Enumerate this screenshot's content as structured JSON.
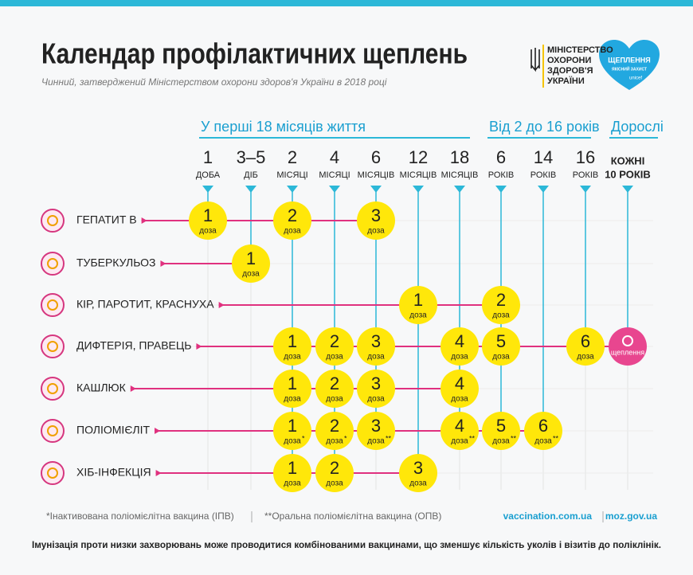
{
  "header": {
    "title": "Календар профілактичних щеплень",
    "subtitle": "Чинний, затверджений Міністерством охорони здоров'я України в 2018 році",
    "ministry": [
      "МІНІСТЕРСТВО",
      "ОХОРОНИ",
      "ЗДОРОВ'Я",
      "УКРАЇНИ"
    ],
    "badge": {
      "title": "ЩЕПЛЕННЯ",
      "subtitle": "ЯКІСНИЙ ЗАХИСТ",
      "brand": "unicef"
    }
  },
  "groups": [
    "У перші 18 місяців життя",
    "Від 2 до 16 років",
    "Дорослі"
  ],
  "columns": [
    {
      "number": "1",
      "unit": "ДОБА"
    },
    {
      "number": "3–5",
      "unit": "ДІБ"
    },
    {
      "number": "2",
      "unit": "МІСЯЦІ"
    },
    {
      "number": "4",
      "unit": "МІСЯЦІ"
    },
    {
      "number": "6",
      "unit": "МІСЯЦІВ"
    },
    {
      "number": "12",
      "unit": "МІСЯЦІВ"
    },
    {
      "number": "18",
      "unit": "МІСЯЦІВ"
    },
    {
      "number": "6",
      "unit": "РОКІВ"
    },
    {
      "number": "14",
      "unit": "РОКІВ"
    },
    {
      "number": "16",
      "unit": "РОКІВ"
    },
    {
      "number": "КОЖНІ",
      "unit": "10 РОКІВ"
    }
  ],
  "rows": [
    {
      "label": "ГЕПАТИТ В",
      "doses": [
        {
          "number": 1,
          "label": "доза"
        },
        null,
        {
          "number": 2,
          "label": "доза"
        },
        null,
        {
          "number": 3,
          "label": "доза"
        },
        null,
        null,
        null,
        null,
        null,
        null
      ]
    },
    {
      "label": "ТУБЕРКУЛЬОЗ",
      "doses": [
        null,
        {
          "number": 1,
          "label": "доза"
        },
        null,
        null,
        null,
        null,
        null,
        null,
        null,
        null,
        null
      ]
    },
    {
      "label": "КІР, ПАРОТИТ, КРАСНУХА",
      "doses": [
        null,
        null,
        null,
        null,
        null,
        {
          "number": 1,
          "label": "доза"
        },
        null,
        {
          "number": 2,
          "label": "доза"
        },
        null,
        null,
        null
      ]
    },
    {
      "label": "ДИФТЕРІЯ, ПРАВЕЦЬ",
      "doses": [
        null,
        null,
        {
          "number": 1,
          "label": "доза"
        },
        {
          "number": 2,
          "label": "доза"
        },
        {
          "number": 3,
          "label": "доза"
        },
        null,
        {
          "number": 4,
          "label": "доза"
        },
        {
          "number": 5,
          "label": "доза"
        },
        null,
        {
          "number": 6,
          "label": "доза"
        },
        {
          "label": "щеплення"
        }
      ]
    },
    {
      "label": "КАШЛЮК",
      "doses": [
        null,
        null,
        {
          "number": 1,
          "label": "доза"
        },
        {
          "number": 2,
          "label": "доза"
        },
        {
          "number": 3,
          "label": "доза"
        },
        null,
        {
          "number": 4,
          "label": "доза"
        },
        null,
        null,
        null,
        null
      ]
    },
    {
      "label": "ПОЛІОМІЄЛІТ",
      "doses": [
        null,
        null,
        {
          "number": 1,
          "label": "доза",
          "note": "*"
        },
        {
          "number": 2,
          "label": "доза",
          "note": "*"
        },
        {
          "number": 3,
          "label": "доза",
          "note": "**"
        },
        null,
        {
          "number": 4,
          "label": "доза",
          "note": "**"
        },
        {
          "number": 5,
          "label": "доза",
          "note": "**"
        },
        {
          "number": 6,
          "label": "доза",
          "note": "**"
        },
        null,
        null
      ]
    },
    {
      "label": "ХІБ-ІНФЕКЦІЯ",
      "doses": [
        null,
        null,
        {
          "number": 1,
          "label": "доза"
        },
        {
          "number": 2,
          "label": "доза"
        },
        null,
        {
          "number": 3,
          "label": "доза"
        },
        null,
        null,
        null,
        null,
        null
      ]
    }
  ],
  "footer": {
    "notes": [
      "*Інактивована поліомієлітна вакцина (ІПВ)",
      "**Оральна поліомієлітна вакцина (ОПВ)"
    ],
    "links": [
      "vaccination.com.ua",
      "moz.gov.ua"
    ],
    "text": "Імунізація проти низки захворювань може проводитися комбінованими вакцинами, що зменшує кількість уколів і візитів до поліклінік."
  }
}
